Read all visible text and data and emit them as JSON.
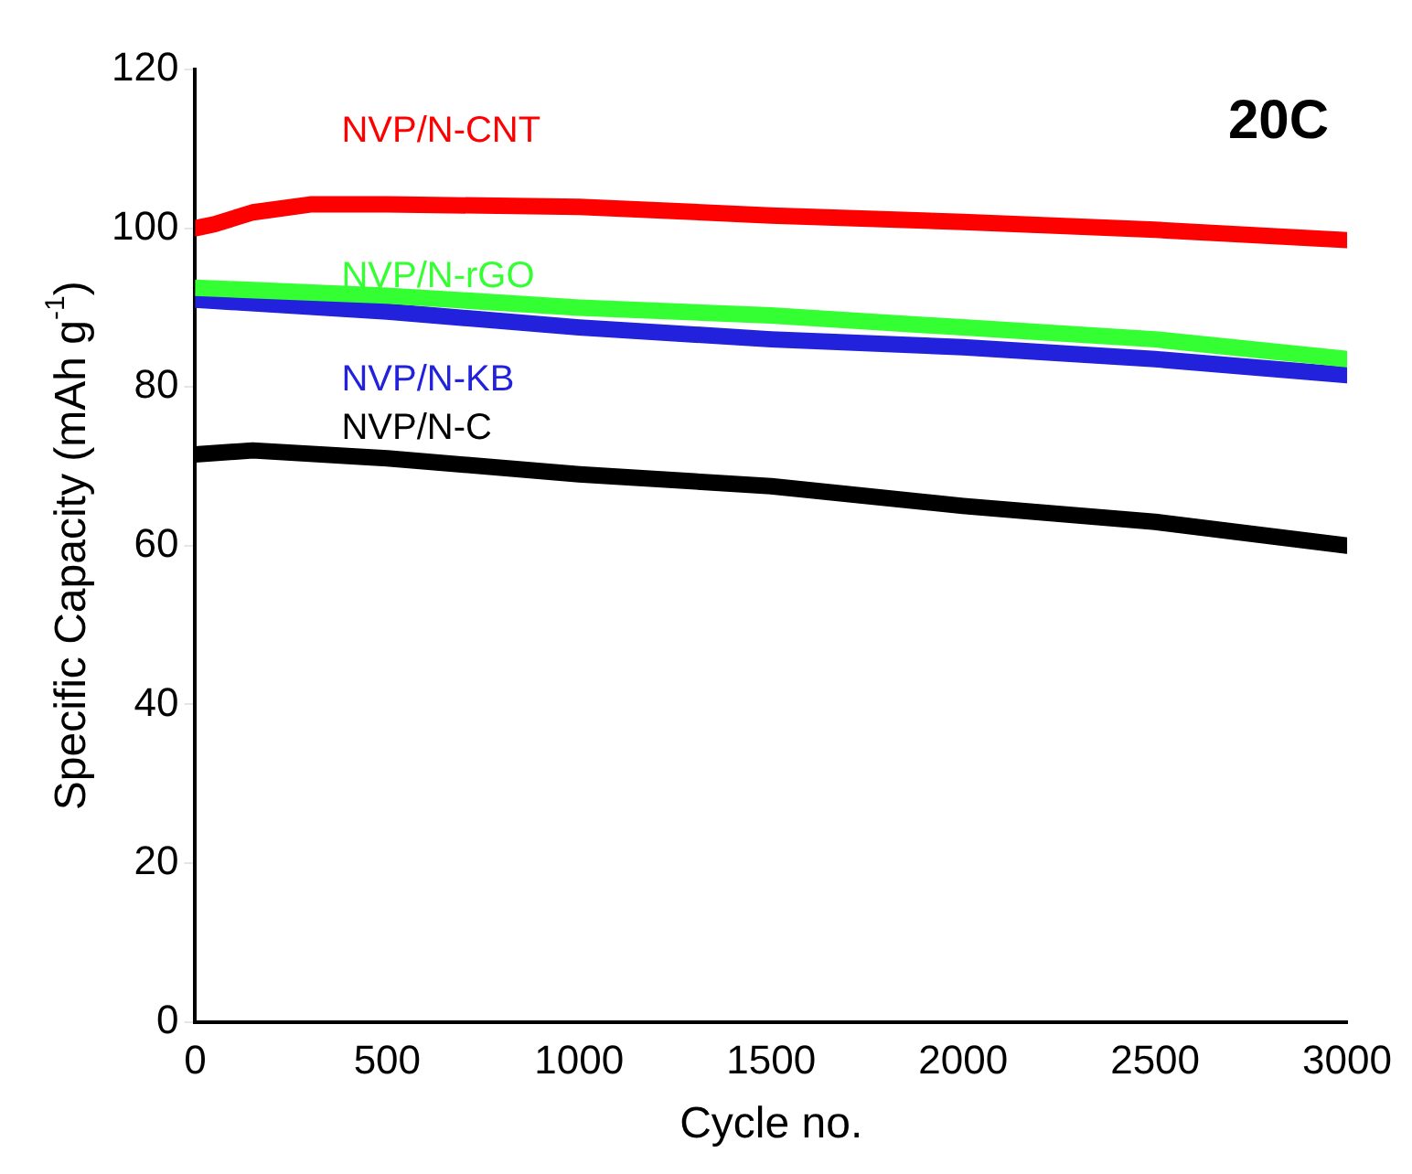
{
  "chart_data": {
    "type": "line",
    "xlabel": "Cycle no.",
    "ylabel": "Specific Capacity (mAh g$^{-1}$)",
    "annotations": [
      "20C"
    ],
    "xlim": [
      0,
      3000
    ],
    "xticks": [
      0,
      500,
      1000,
      1500,
      2000,
      2500,
      3000
    ],
    "ylim": [
      0,
      120
    ],
    "yticks": [
      0,
      20,
      40,
      60,
      80,
      100,
      120
    ],
    "grid": false,
    "legend": false,
    "marker": "none",
    "line_style": "solid",
    "series": [
      {
        "name": "NVP/N-CNT",
        "color": "#ff0000",
        "x": [
          0,
          50,
          150,
          300,
          500,
          1000,
          1500,
          2000,
          2500,
          3000
        ],
        "values": [
          100,
          100.5,
          102,
          103,
          103,
          102.7,
          101.6,
          100.8,
          99.8,
          98.5
        ]
      },
      {
        "name": "NVP/N-rGO",
        "color": "#33ff33",
        "x": [
          0,
          500,
          1000,
          1500,
          2000,
          2500,
          3000
        ],
        "values": [
          92.5,
          91.5,
          90,
          89,
          87.5,
          86,
          83.5
        ]
      },
      {
        "name": "NVP/N-KB",
        "color": "#2222dd",
        "x": [
          0,
          500,
          1000,
          1500,
          2000,
          2500,
          3000
        ],
        "values": [
          91,
          89.5,
          87.5,
          86,
          85,
          83.5,
          81.5
        ]
      },
      {
        "name": "NVP/N-C",
        "color": "#000000",
        "x": [
          0,
          150,
          500,
          1000,
          1500,
          2000,
          2500,
          3000
        ],
        "values": [
          71.5,
          72,
          71,
          69,
          67.5,
          65,
          63,
          60
        ]
      }
    ]
  }
}
